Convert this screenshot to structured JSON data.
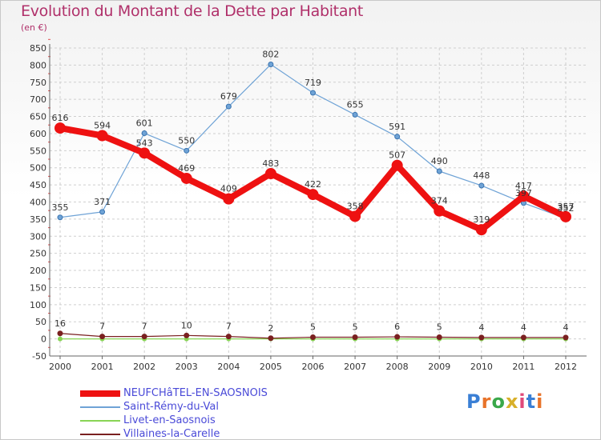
{
  "title": "Evolution du Montant de la Dette par Habitant",
  "unit": "(en €)",
  "logo": [
    "P",
    "r",
    "o",
    "x",
    "i",
    "t",
    "i"
  ],
  "logo_colors": [
    "#3a7fd5",
    "#e8732a",
    "#3aa84a",
    "#d8b02a",
    "#e04a7a",
    "#3a7fd5",
    "#e8732a"
  ],
  "chart_data": {
    "type": "line",
    "title": "Evolution du Montant de la Dette par Habitant",
    "ylabel": "(en €)",
    "xlabel": "",
    "ylim": [
      -50,
      850
    ],
    "yticks": [
      -50,
      0,
      50,
      100,
      150,
      200,
      250,
      300,
      350,
      400,
      450,
      500,
      550,
      600,
      650,
      700,
      750,
      800,
      850
    ],
    "categories": [
      "2000",
      "2001",
      "2002",
      "2003",
      "2004",
      "2005",
      "2006",
      "2007",
      "2008",
      "2009",
      "2010",
      "2011",
      "2012"
    ],
    "series": [
      {
        "name": "NEUFCHâTEL-EN-SAOSNOIS",
        "color": "#ee1111",
        "values": [
          616,
          594,
          543,
          469,
          409,
          483,
          422,
          358,
          507,
          374,
          319,
          417,
          357
        ]
      },
      {
        "name": "Saint-Rémy-du-Val",
        "color": "#6fa3d6",
        "values": [
          355,
          371,
          601,
          550,
          679,
          802,
          719,
          655,
          591,
          490,
          448,
          397,
          352
        ]
      },
      {
        "name": "Livet-en-Saosnois",
        "color": "#88d455",
        "values": [
          0,
          0,
          0,
          0,
          0,
          0,
          0,
          0,
          0,
          0,
          0,
          0,
          0
        ]
      },
      {
        "name": "Villaines-la-Carelle",
        "color": "#7a2020",
        "values": [
          16,
          7,
          7,
          10,
          7,
          2,
          5,
          5,
          6,
          5,
          4,
          4,
          4
        ]
      }
    ]
  }
}
